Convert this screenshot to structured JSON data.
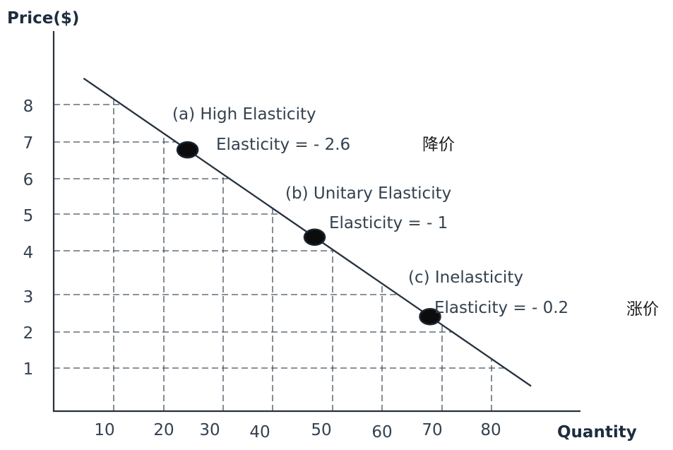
{
  "chart_data": {
    "type": "line",
    "xlabel": "Quantity",
    "ylabel": "Price($)",
    "x_ticks": [
      "10",
      "20",
      "30",
      "40",
      "50",
      "60",
      "70",
      "80"
    ],
    "y_ticks": [
      "1",
      "2",
      "3",
      "4",
      "5",
      "6",
      "7",
      "8"
    ],
    "grid": "dashed guide lines from ticks to the demand line",
    "series": [
      {
        "x": [
          4,
          88
        ],
        "y": [
          8.7,
          0.5
        ],
        "color": "#26323e"
      }
    ],
    "points": [
      {
        "label": "(a)  High Elasticity",
        "sublabel": "Elasticity = - 2.6",
        "x": 24,
        "y": 6.8
      },
      {
        "label": "(b) Unitary Elasticity",
        "sublabel": "Elasticity = - 1",
        "x": 47,
        "y": 4.6
      },
      {
        "label": "(c) Inelasticity",
        "sublabel": "Elasticity = - 0.2",
        "x": 68,
        "y": 2.8
      }
    ],
    "side_notes": [
      "降价",
      "涨价"
    ]
  }
}
